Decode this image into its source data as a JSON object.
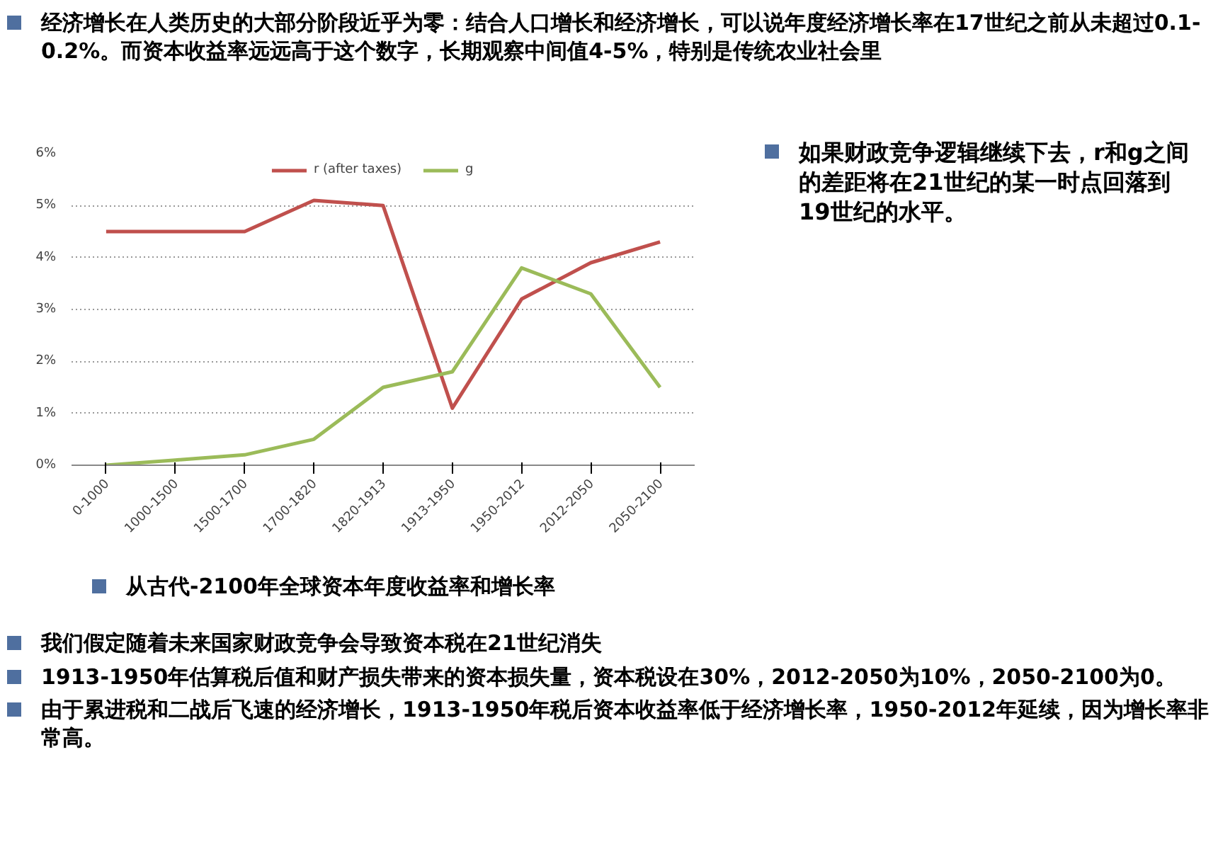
{
  "chart_data": {
    "type": "line",
    "title": "从古代-2100年全球资本年度收益率和增长率",
    "annotations": [
      "经济增长在人类历史的大部分阶段近乎为零：结合人口增长和经济增长，可以说年度经济增长率在17世纪之前从未超过0.1-0.2%。而资本收益率远远高于这个数字，长期观察中间值4-5%，特别是传统农业社会里",
      "如果财政竞争逻辑继续下去，r和g之间的差距将在21世纪的某一时点回落到19世纪的水平。",
      "我们假定随着未来国家财政竞争会导致资本税在21世纪消失",
      "1913-1950年估算税后值和财产损失带来的资本损失量，资本税设在30%，2012-2050为10%，2050-2100为0。",
      "由于累进税和二战后飞速的经济增长，1913-1950年税后资本收益率低于经济增长率，1950-2012年延续，因为增长率非常高。"
    ],
    "categories": [
      "0-1000",
      "1000-1500",
      "1500-1700",
      "1700-1820",
      "1820-1913",
      "1913-1950",
      "1950-2012",
      "2012-2050",
      "2050-2100"
    ],
    "series": [
      {
        "name": "r (after taxes)",
        "color": "#c0504d",
        "values": [
          4.5,
          4.5,
          4.5,
          5.1,
          5.0,
          1.1,
          3.2,
          3.9,
          4.3
        ]
      },
      {
        "name": "g",
        "color": "#9bbb59",
        "values": [
          0.0,
          0.1,
          0.2,
          0.5,
          1.5,
          1.8,
          3.8,
          3.3,
          1.5
        ]
      }
    ],
    "ylim": [
      0,
      6
    ],
    "yticks": [
      {
        "value": 0,
        "label": "0%"
      },
      {
        "value": 1,
        "label": "1%"
      },
      {
        "value": 2,
        "label": "2%"
      },
      {
        "value": 3,
        "label": "3%"
      },
      {
        "value": 4,
        "label": "4%"
      },
      {
        "value": 5,
        "label": "5%"
      },
      {
        "value": 6,
        "label": "6%"
      }
    ],
    "grid": "y",
    "legend": "top",
    "marker": "none",
    "line_style": "solid"
  }
}
